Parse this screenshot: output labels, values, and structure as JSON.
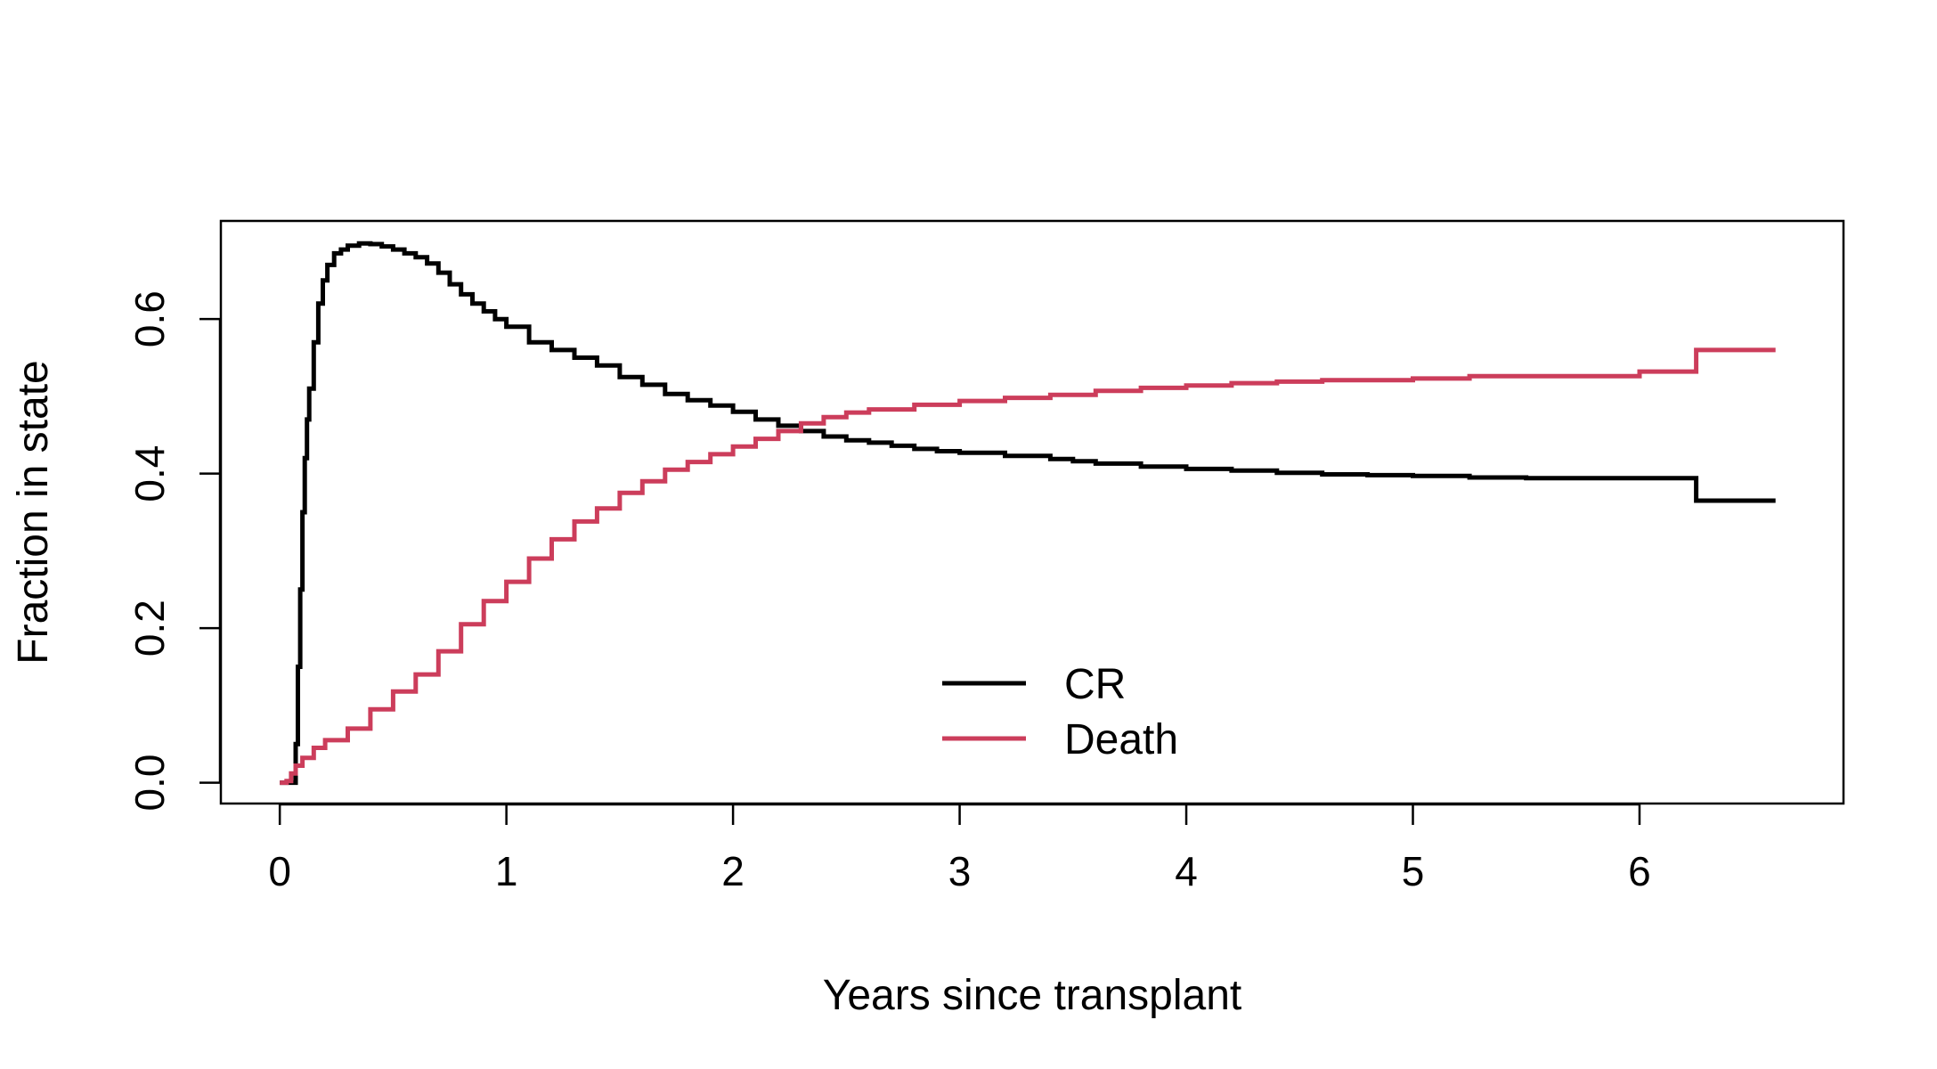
{
  "chart_data": {
    "type": "line",
    "title": "",
    "xlabel": "Years since transplant",
    "ylabel": "Fraction in state",
    "xlim": [
      -0.26,
      6.9
    ],
    "ylim": [
      -0.027,
      0.727
    ],
    "x_ticks": [
      0,
      1,
      2,
      3,
      4,
      5,
      6
    ],
    "x_tick_labels": [
      "0",
      "1",
      "2",
      "3",
      "4",
      "5",
      "6"
    ],
    "y_ticks": [
      0.0,
      0.2,
      0.4,
      0.6
    ],
    "y_tick_labels": [
      "0.0",
      "0.2",
      "0.4",
      "0.6"
    ],
    "grid": false,
    "step": true,
    "legend": {
      "position": "bottom-center",
      "entries": [
        "CR",
        "Death"
      ]
    },
    "series": [
      {
        "name": "CR",
        "color": "#000000",
        "x": [
          0,
          0.05,
          0.07,
          0.08,
          0.09,
          0.1,
          0.11,
          0.12,
          0.13,
          0.15,
          0.17,
          0.19,
          0.21,
          0.24,
          0.27,
          0.3,
          0.35,
          0.4,
          0.45,
          0.5,
          0.55,
          0.6,
          0.65,
          0.7,
          0.75,
          0.8,
          0.85,
          0.9,
          0.95,
          1.0,
          1.1,
          1.2,
          1.3,
          1.4,
          1.5,
          1.6,
          1.7,
          1.8,
          1.9,
          2.0,
          2.1,
          2.2,
          2.3,
          2.4,
          2.5,
          2.6,
          2.7,
          2.8,
          2.9,
          3.0,
          3.2,
          3.4,
          3.5,
          3.6,
          3.8,
          4.0,
          4.2,
          4.4,
          4.6,
          4.8,
          5.0,
          5.25,
          5.5,
          6.0,
          6.25,
          6.6
        ],
        "y": [
          0.0,
          0.0,
          0.05,
          0.15,
          0.25,
          0.35,
          0.42,
          0.47,
          0.51,
          0.57,
          0.62,
          0.65,
          0.67,
          0.685,
          0.69,
          0.695,
          0.698,
          0.697,
          0.694,
          0.69,
          0.685,
          0.68,
          0.672,
          0.66,
          0.645,
          0.632,
          0.62,
          0.61,
          0.6,
          0.59,
          0.57,
          0.56,
          0.55,
          0.54,
          0.525,
          0.515,
          0.503,
          0.495,
          0.488,
          0.48,
          0.47,
          0.462,
          0.455,
          0.448,
          0.443,
          0.44,
          0.436,
          0.432,
          0.429,
          0.427,
          0.423,
          0.419,
          0.416,
          0.413,
          0.409,
          0.406,
          0.404,
          0.401,
          0.399,
          0.398,
          0.397,
          0.395,
          0.394,
          0.394,
          0.365,
          0.365
        ]
      },
      {
        "name": "Death",
        "color": "#cc3d5b",
        "x": [
          0,
          0.03,
          0.05,
          0.07,
          0.1,
          0.15,
          0.2,
          0.3,
          0.4,
          0.5,
          0.6,
          0.7,
          0.8,
          0.9,
          1.0,
          1.1,
          1.2,
          1.3,
          1.4,
          1.5,
          1.6,
          1.7,
          1.8,
          1.9,
          2.0,
          2.1,
          2.2,
          2.3,
          2.4,
          2.5,
          2.6,
          2.8,
          3.0,
          3.2,
          3.4,
          3.6,
          3.8,
          4.0,
          4.2,
          4.4,
          4.6,
          5.0,
          5.25,
          6.0,
          6.25,
          6.6
        ],
        "y": [
          0.0,
          0.002,
          0.012,
          0.022,
          0.032,
          0.045,
          0.055,
          0.07,
          0.095,
          0.118,
          0.14,
          0.17,
          0.205,
          0.235,
          0.26,
          0.29,
          0.315,
          0.338,
          0.355,
          0.375,
          0.39,
          0.405,
          0.415,
          0.425,
          0.435,
          0.445,
          0.455,
          0.465,
          0.473,
          0.479,
          0.483,
          0.489,
          0.494,
          0.498,
          0.502,
          0.507,
          0.511,
          0.514,
          0.517,
          0.519,
          0.521,
          0.523,
          0.526,
          0.532,
          0.56,
          0.56
        ]
      }
    ]
  }
}
